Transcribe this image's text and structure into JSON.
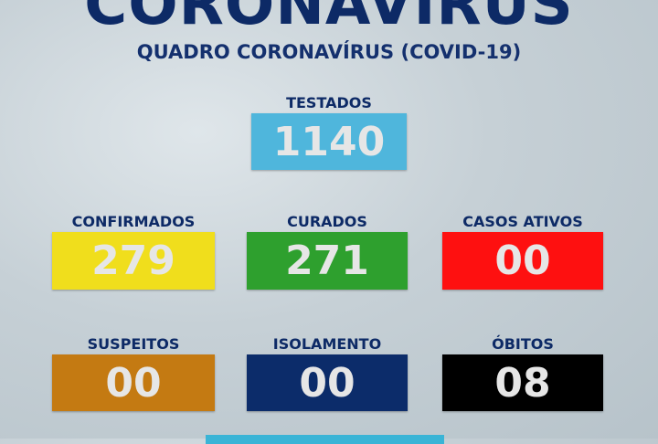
{
  "header": {
    "title": "CORONAVIRUS",
    "subtitle": "QUADRO CORONAVÍRUS (COVID-19)"
  },
  "stats": [
    {
      "label": "TESTADOS",
      "value": "1140",
      "color": "#4fb6dc"
    },
    {
      "label": "CONFIRMADOS",
      "value": "279",
      "color": "#f0de1c"
    },
    {
      "label": "CURADOS",
      "value": "271",
      "color": "#2ea02e"
    },
    {
      "label": "CASOS ATIVOS",
      "value": "00",
      "color": "#fe1010"
    },
    {
      "label": "SUSPEITOS",
      "value": "00",
      "color": "#c47a12"
    },
    {
      "label": "ISOLAMENTO",
      "value": "00",
      "color": "#0c2c6a"
    },
    {
      "label": "ÓBITOS",
      "value": "08",
      "color": "#000000"
    }
  ]
}
